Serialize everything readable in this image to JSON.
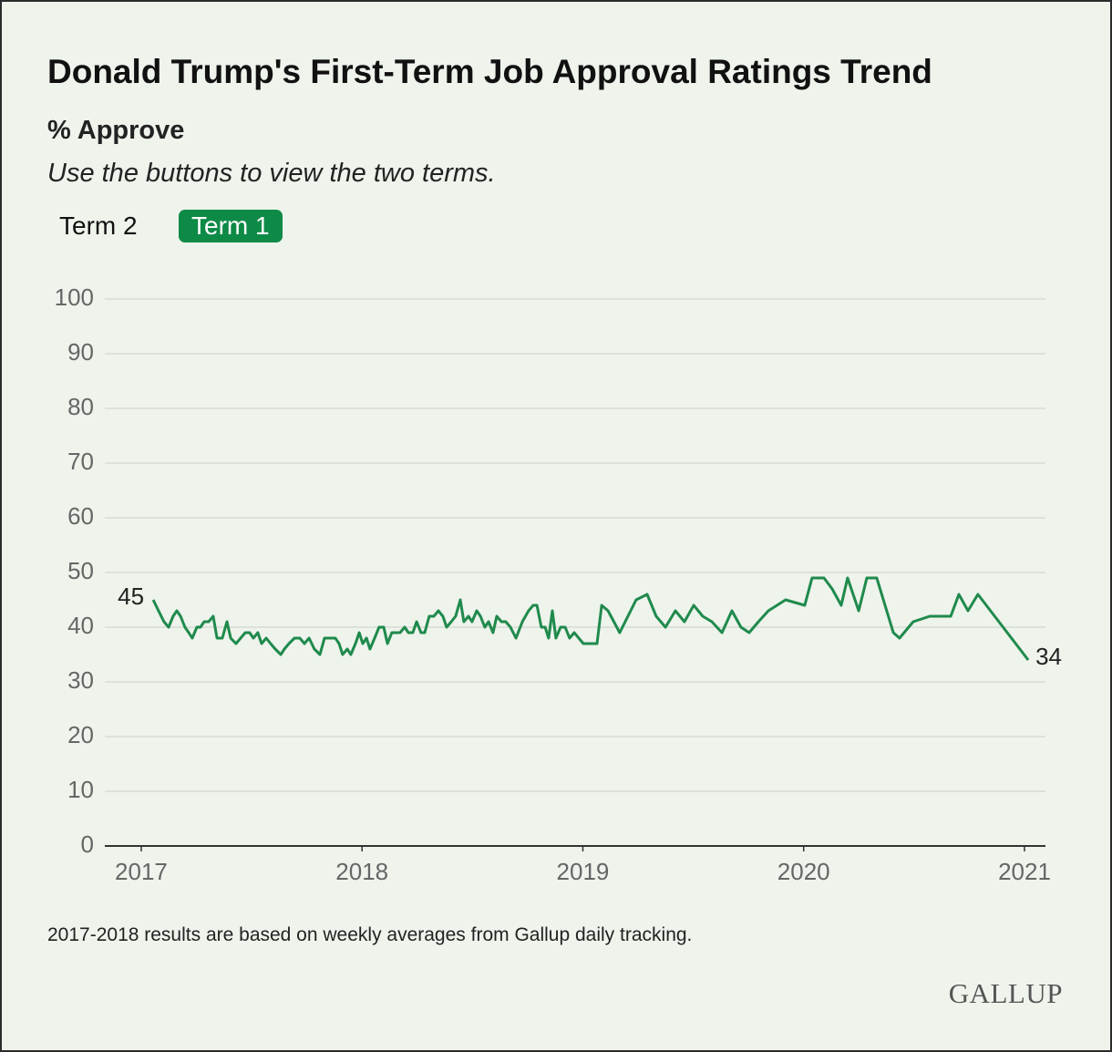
{
  "chart_data": {
    "type": "line",
    "title": "Donald Trump's First-Term Job Approval Ratings Trend",
    "subtitle": "% Approve",
    "instruction": "Use the buttons to view the two terms.",
    "buttons": [
      "Term 2",
      "Term 1"
    ],
    "selected_button": 1,
    "note": "2017-2018 results are based on weekly averages from Gallup daily tracking.",
    "source": "GALLUP",
    "color": "#1f8a4c",
    "x": [
      2017.054,
      2017.078,
      2017.103,
      2017.124,
      2017.144,
      2017.161,
      2017.178,
      2017.198,
      2017.215,
      2017.231,
      2017.252,
      2017.268,
      2017.285,
      2017.305,
      2017.326,
      2017.343,
      2017.367,
      2017.388,
      2017.405,
      2017.429,
      2017.45,
      2017.471,
      2017.491,
      2017.508,
      2017.528,
      2017.545,
      2017.566,
      2017.586,
      2017.607,
      2017.632,
      2017.648,
      2017.669,
      2017.694,
      2017.718,
      2017.739,
      2017.76,
      2017.784,
      2017.809,
      2017.83,
      2017.854,
      2017.879,
      2017.896,
      2017.912,
      2017.933,
      2017.949,
      2017.97,
      2017.987,
      2018.003,
      2018.02,
      2018.036,
      2018.057,
      2018.077,
      2018.098,
      2018.115,
      2018.135,
      2018.152,
      2018.172,
      2018.193,
      2018.21,
      2018.23,
      2018.247,
      2018.267,
      2018.284,
      2018.304,
      2018.325,
      2018.346,
      2018.366,
      2018.383,
      2018.404,
      2018.424,
      2018.445,
      2018.461,
      2018.482,
      2018.498,
      2018.519,
      2018.536,
      2018.556,
      2018.573,
      2018.593,
      2018.61,
      2018.631,
      2018.651,
      2018.672,
      2018.697,
      2018.726,
      2018.754,
      2018.775,
      2018.792,
      2018.812,
      2018.829,
      2018.845,
      2018.862,
      2018.878,
      2018.899,
      2018.92,
      2018.94,
      2018.961,
      2019.002,
      2019.064,
      2019.085,
      2019.114,
      2019.167,
      2019.241,
      2019.291,
      2019.332,
      2019.374,
      2019.419,
      2019.46,
      2019.502,
      2019.543,
      2019.584,
      2019.63,
      2019.675,
      2019.716,
      2019.753,
      2019.795,
      2019.84,
      2019.918,
      2020.005,
      2020.038,
      2020.092,
      2020.129,
      2020.17,
      2020.199,
      2020.249,
      2020.286,
      2020.331,
      2020.406,
      2020.434,
      2020.496,
      2020.571,
      2020.666,
      2020.703,
      2020.744,
      2020.789,
      2021.017
    ],
    "values": [
      45,
      43,
      41,
      40,
      42,
      43,
      42,
      40,
      39,
      38,
      40,
      40,
      41,
      41,
      42,
      38,
      38,
      41,
      38,
      37,
      38,
      39,
      39,
      38,
      39,
      37,
      38,
      37,
      36,
      35,
      36,
      37,
      38,
      38,
      37,
      38,
      36,
      35,
      38,
      38,
      38,
      37,
      35,
      36,
      35,
      37,
      39,
      37,
      38,
      36,
      38,
      40,
      40,
      37,
      39,
      39,
      39,
      40,
      39,
      39,
      41,
      39,
      39,
      42,
      42,
      43,
      42,
      40,
      41,
      42,
      45,
      41,
      42,
      41,
      43,
      42,
      40,
      41,
      39,
      42,
      41,
      41,
      40,
      38,
      41,
      43,
      44,
      44,
      40,
      40,
      38,
      43,
      38,
      40,
      40,
      38,
      39,
      37,
      37,
      44,
      43,
      39,
      45,
      46,
      42,
      40,
      43,
      41,
      44,
      42,
      41,
      39,
      43,
      40,
      39,
      41,
      43,
      45,
      44,
      49,
      49,
      47,
      44,
      49,
      43,
      49,
      49,
      39,
      38,
      41,
      42,
      42,
      46,
      43,
      46,
      34
    ],
    "xlim": [
      2016.835,
      2021.095
    ],
    "xticks": [
      2017,
      2018,
      2019,
      2020,
      2021
    ],
    "ylim": [
      0,
      100
    ],
    "yticks": [
      0,
      10,
      20,
      30,
      40,
      50,
      60,
      70,
      80,
      90,
      100
    ],
    "grid": true
  }
}
